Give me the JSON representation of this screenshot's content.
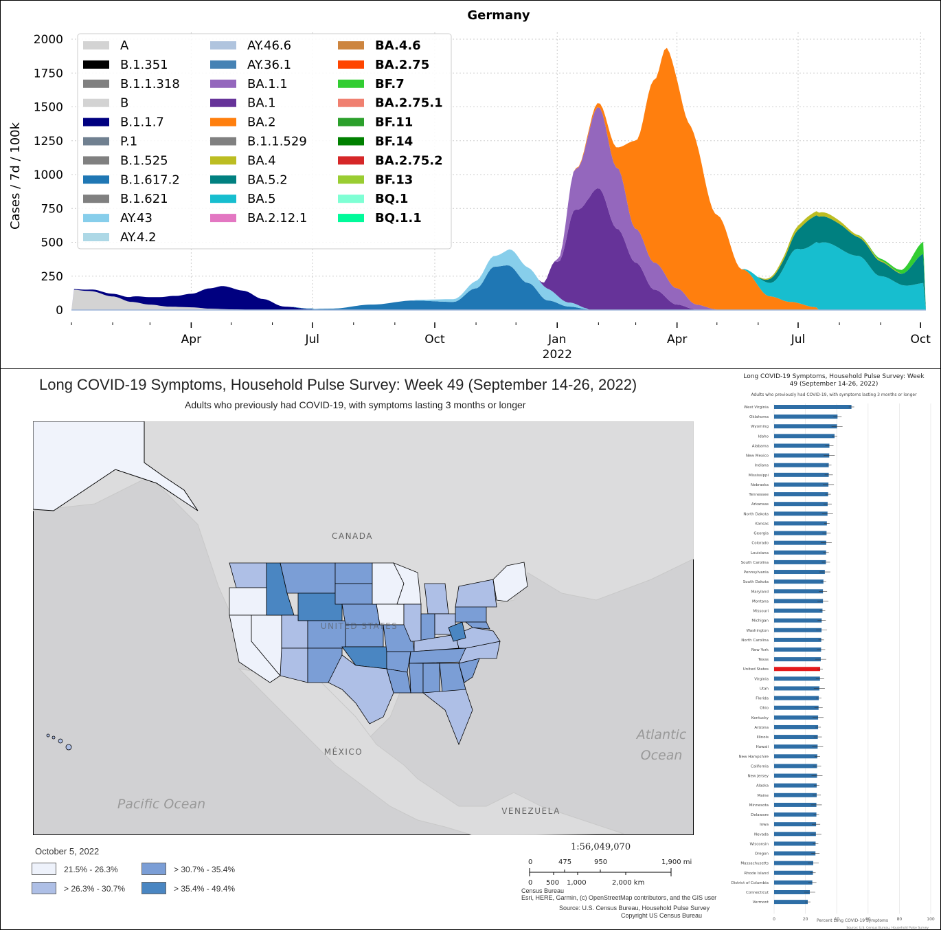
{
  "chart_data": [
    {
      "type": "area",
      "title": "Germany",
      "ylabel": "Cases / 7d / 100k",
      "xlabel": "",
      "ylim": [
        0,
        2000
      ],
      "yticks": [
        "0",
        "250",
        "500",
        "750",
        "1000",
        "1250",
        "1500",
        "1750",
        "2000"
      ],
      "xticks": [
        "Apr",
        "Jul",
        "Oct",
        "Jan",
        "Apr",
        "Jul",
        "Oct"
      ],
      "xtick_year": "2022",
      "grid": true,
      "legend_position": "top-left",
      "legend": [
        {
          "name": "A",
          "color": "#d3d3d3",
          "bold": false
        },
        {
          "name": "B.1.351",
          "color": "#000000",
          "bold": false
        },
        {
          "name": "B.1.1.318",
          "color": "#808080",
          "bold": false
        },
        {
          "name": "B",
          "color": "#d3d3d3",
          "bold": false
        },
        {
          "name": "B.1.1.7",
          "color": "#000080",
          "bold": false
        },
        {
          "name": "P.1",
          "color": "#708090",
          "bold": false
        },
        {
          "name": "B.1.525",
          "color": "#808080",
          "bold": false
        },
        {
          "name": "B.1.617.2",
          "color": "#1f77b4",
          "bold": false
        },
        {
          "name": "B.1.621",
          "color": "#808080",
          "bold": false
        },
        {
          "name": "AY.43",
          "color": "#87ceeb",
          "bold": false
        },
        {
          "name": "AY.4.2",
          "color": "#add8e6",
          "bold": false
        },
        {
          "name": "AY.46.6",
          "color": "#b0c4de",
          "bold": false
        },
        {
          "name": "AY.36.1",
          "color": "#4682b4",
          "bold": false
        },
        {
          "name": "BA.1.1",
          "color": "#9467bd",
          "bold": false
        },
        {
          "name": "BA.1",
          "color": "#663399",
          "bold": false
        },
        {
          "name": "BA.2",
          "color": "#ff7f0e",
          "bold": false
        },
        {
          "name": "B.1.1.529",
          "color": "#808080",
          "bold": false
        },
        {
          "name": "BA.4",
          "color": "#bcbd22",
          "bold": false
        },
        {
          "name": "BA.5.2",
          "color": "#008080",
          "bold": false
        },
        {
          "name": "BA.5",
          "color": "#17becf",
          "bold": false
        },
        {
          "name": "BA.2.12.1",
          "color": "#e377c2",
          "bold": false
        },
        {
          "name": "BA.4.6",
          "color": "#cd853f",
          "bold": true
        },
        {
          "name": "BA.2.75",
          "color": "#ff4500",
          "bold": true
        },
        {
          "name": "BF.7",
          "color": "#32cd32",
          "bold": true
        },
        {
          "name": "BA.2.75.1",
          "color": "#f08070",
          "bold": true
        },
        {
          "name": "BF.11",
          "color": "#2ca02c",
          "bold": true
        },
        {
          "name": "BF.14",
          "color": "#008000",
          "bold": true
        },
        {
          "name": "BA.2.75.2",
          "color": "#d62728",
          "bold": true
        },
        {
          "name": "BF.13",
          "color": "#9acd32",
          "bold": true
        },
        {
          "name": "BQ.1",
          "color": "#7fffd4",
          "bold": true
        },
        {
          "name": "BQ.1.1",
          "color": "#00fa9a",
          "bold": true
        }
      ],
      "month_index_note_free": true,
      "x_months": [
        "2021-01",
        "2021-02",
        "2021-03",
        "2021-04",
        "2021-05",
        "2021-06",
        "2021-07",
        "2021-08",
        "2021-09",
        "2021-10",
        "2021-11",
        "2021-12",
        "2022-01",
        "2022-02",
        "2022-03",
        "2022-04",
        "2022-05",
        "2022-06",
        "2022-07",
        "2022-08",
        "2022-09",
        "2022-10"
      ],
      "series": [
        {
          "name": "A",
          "color": "#d3d3d3",
          "x": [
            "2021-01-01",
            "2021-01-15",
            "2021-02-01",
            "2021-02-15",
            "2021-03-01",
            "2021-03-15",
            "2021-04-01",
            "2021-04-15",
            "2021-05-01",
            "2021-05-15",
            "2021-06-01"
          ],
          "values": [
            150,
            140,
            100,
            60,
            40,
            25,
            20,
            10,
            5,
            2,
            0
          ]
        },
        {
          "name": "B.1.1.7",
          "color": "#000080",
          "x": [
            "2021-01-01",
            "2021-02-01",
            "2021-03-01",
            "2021-03-20",
            "2021-04-01",
            "2021-04-15",
            "2021-04-25",
            "2021-05-10",
            "2021-05-25",
            "2021-06-10",
            "2021-07-01"
          ],
          "values": [
            5,
            20,
            55,
            80,
            100,
            150,
            170,
            140,
            80,
            25,
            5
          ]
        },
        {
          "name": "B.1.617.2",
          "color": "#1f77b4",
          "x": [
            "2021-06-15",
            "2021-07-15",
            "2021-08-15",
            "2021-09-15",
            "2021-10-15",
            "2021-11-01",
            "2021-11-15",
            "2021-11-25",
            "2021-12-10",
            "2021-12-25",
            "2022-01-10",
            "2022-01-25"
          ],
          "values": [
            2,
            10,
            40,
            70,
            60,
            160,
            320,
            330,
            200,
            70,
            25,
            5
          ]
        },
        {
          "name": "AY.43",
          "color": "#87ceeb",
          "x": [
            "2021-09-15",
            "2021-10-15",
            "2021-11-15",
            "2021-12-01",
            "2021-12-20",
            "2022-01-10",
            "2022-01-25"
          ],
          "values": [
            5,
            20,
            80,
            130,
            95,
            30,
            5
          ]
        },
        {
          "name": "BA.1",
          "color": "#663399",
          "x": [
            "2021-12-20",
            "2022-01-01",
            "2022-01-15",
            "2022-02-01",
            "2022-02-15",
            "2022-03-01",
            "2022-03-15",
            "2022-04-01",
            "2022-04-15"
          ],
          "values": [
            10,
            250,
            700,
            900,
            600,
            350,
            150,
            40,
            5
          ]
        },
        {
          "name": "BA.1.1",
          "color": "#9467bd",
          "x": [
            "2022-01-01",
            "2022-01-15",
            "2022-02-01",
            "2022-02-15",
            "2022-03-01",
            "2022-03-15",
            "2022-04-01",
            "2022-04-15",
            "2022-05-01"
          ],
          "values": [
            20,
            300,
            600,
            450,
            250,
            200,
            120,
            40,
            5
          ]
        },
        {
          "name": "BA.2",
          "color": "#ff7f0e",
          "x": [
            "2022-01-15",
            "2022-02-01",
            "2022-02-15",
            "2022-03-01",
            "2022-03-15",
            "2022-03-25",
            "2022-04-10",
            "2022-05-01",
            "2022-05-20",
            "2022-06-10",
            "2022-06-25",
            "2022-07-15"
          ],
          "values": [
            5,
            30,
            150,
            650,
            1350,
            1700,
            1300,
            700,
            300,
            100,
            60,
            20
          ]
        },
        {
          "name": "BA.5",
          "color": "#17becf",
          "x": [
            "2022-05-20",
            "2022-06-10",
            "2022-07-01",
            "2022-07-20",
            "2022-08-15",
            "2022-09-01",
            "2022-09-20",
            "2022-10-05"
          ],
          "values": [
            5,
            100,
            400,
            500,
            400,
            250,
            180,
            200
          ]
        },
        {
          "name": "BA.5.2",
          "color": "#008080",
          "x": [
            "2022-06-01",
            "2022-06-20",
            "2022-07-10",
            "2022-08-01",
            "2022-08-20",
            "2022-09-15",
            "2022-10-05"
          ],
          "values": [
            5,
            60,
            200,
            180,
            130,
            80,
            220
          ]
        },
        {
          "name": "BA.4",
          "color": "#bcbd22",
          "x": [
            "2022-06-01",
            "2022-07-01",
            "2022-07-20",
            "2022-08-15",
            "2022-09-15"
          ],
          "values": [
            5,
            30,
            30,
            15,
            5
          ]
        },
        {
          "name": "BF.7",
          "color": "#32cd32",
          "x": [
            "2022-08-15",
            "2022-09-10",
            "2022-10-05"
          ],
          "values": [
            2,
            15,
            90
          ]
        }
      ]
    },
    {
      "type": "bar",
      "title": "Long COVID-19 Symptoms, Household Pulse Survey: Week 49 (September 14-26, 2022)",
      "subtitle": "Adults who previously had COVID-19, with symptoms lasting 3 months or longer",
      "xlabel": "Percent Long COVID-19 Symptoms",
      "xlim": [
        0,
        100
      ],
      "xticks": [
        "0",
        "20",
        "40",
        "60",
        "80",
        "100"
      ],
      "source": "Source: U.S. Census Bureau, Household Pulse Survey",
      "highlight": "United States",
      "bar_color": "#2e6ea6",
      "highlight_color": "#e31a1c",
      "categories": [
        "West Virginia",
        "Oklahoma",
        "Wyoming",
        "Idaho",
        "Alabama",
        "New Mexico",
        "Indiana",
        "Mississippi",
        "Nebraska",
        "Tennessee",
        "Arkansas",
        "North Dakota",
        "Kansas",
        "Georgia",
        "Colorado",
        "Louisiana",
        "South Carolina",
        "Pennsylvania",
        "South Dakota",
        "Maryland",
        "Montana",
        "Missouri",
        "Michigan",
        "Washington",
        "North Carolina",
        "New York",
        "Texas",
        "United States",
        "Virginia",
        "Utah",
        "Florida",
        "Ohio",
        "Kentucky",
        "Arizona",
        "Illinois",
        "Hawaii",
        "New Hampshire",
        "California",
        "New Jersey",
        "Alaska",
        "Maine",
        "Minnesota",
        "Delaware",
        "Iowa",
        "Nevada",
        "Wisconsin",
        "Oregon",
        "Massachusetts",
        "Rhode Island",
        "District of Columbia",
        "Connecticut",
        "Vermont"
      ],
      "values": [
        49.4,
        40.5,
        40.2,
        38.6,
        35.3,
        35.2,
        34.9,
        34.9,
        34.7,
        34.5,
        34.2,
        34.1,
        33.7,
        33.5,
        33.3,
        33.2,
        33.1,
        32.4,
        31.5,
        31.2,
        31.2,
        30.9,
        30.4,
        30.3,
        30.1,
        30.0,
        29.8,
        29.4,
        29.3,
        28.9,
        28.5,
        28.4,
        28.1,
        28.1,
        27.9,
        27.8,
        27.6,
        27.4,
        27.4,
        27.2,
        27.2,
        27.0,
        27.0,
        26.8,
        26.7,
        26.5,
        26.4,
        25.0,
        24.8,
        24.4,
        22.8,
        21.5
      ]
    }
  ],
  "map": {
    "title": "Long COVID-19 Symptoms, Household Pulse Survey: Week 49 (September 14-26, 2022)",
    "subtitle": "Adults who previously had COVID-19, with symptoms lasting 3 months or longer",
    "labels": {
      "canada": "CANADA",
      "united_states": "UNITED STATES",
      "mexico": "MÉXICO",
      "venezuela": "VENEZUELA",
      "atlantic1": "Atlantic",
      "atlantic2": "Ocean",
      "pacific": "Pacific Ocean"
    },
    "legend_date": "October 5, 2022",
    "legend": [
      {
        "label": "21.5% - 26.3%",
        "color": "#eef2fb"
      },
      {
        "label": "> 26.3% - 30.7%",
        "color": "#aebfe6"
      },
      {
        "label": "> 30.7% - 35.4%",
        "color": "#7b9ed6"
      },
      {
        "label": "> 35.4% - 49.4%",
        "color": "#4a86c2"
      }
    ],
    "scale_ratio": "1:56,049,070",
    "scale_miles": [
      "0",
      "475",
      "950",
      "1,900 mi"
    ],
    "scale_km": [
      "0",
      "500",
      "1,000",
      "2,000 km"
    ],
    "credit1": "Census Bureau",
    "credit2": "Esri, HERE, Garmin, (c) OpenStreetMap contributors, and the GIS user",
    "credit3": "Source: U.S. Census Bureau, Household Pulse Survey",
    "credit4": "Copyright US Census Bureau"
  }
}
